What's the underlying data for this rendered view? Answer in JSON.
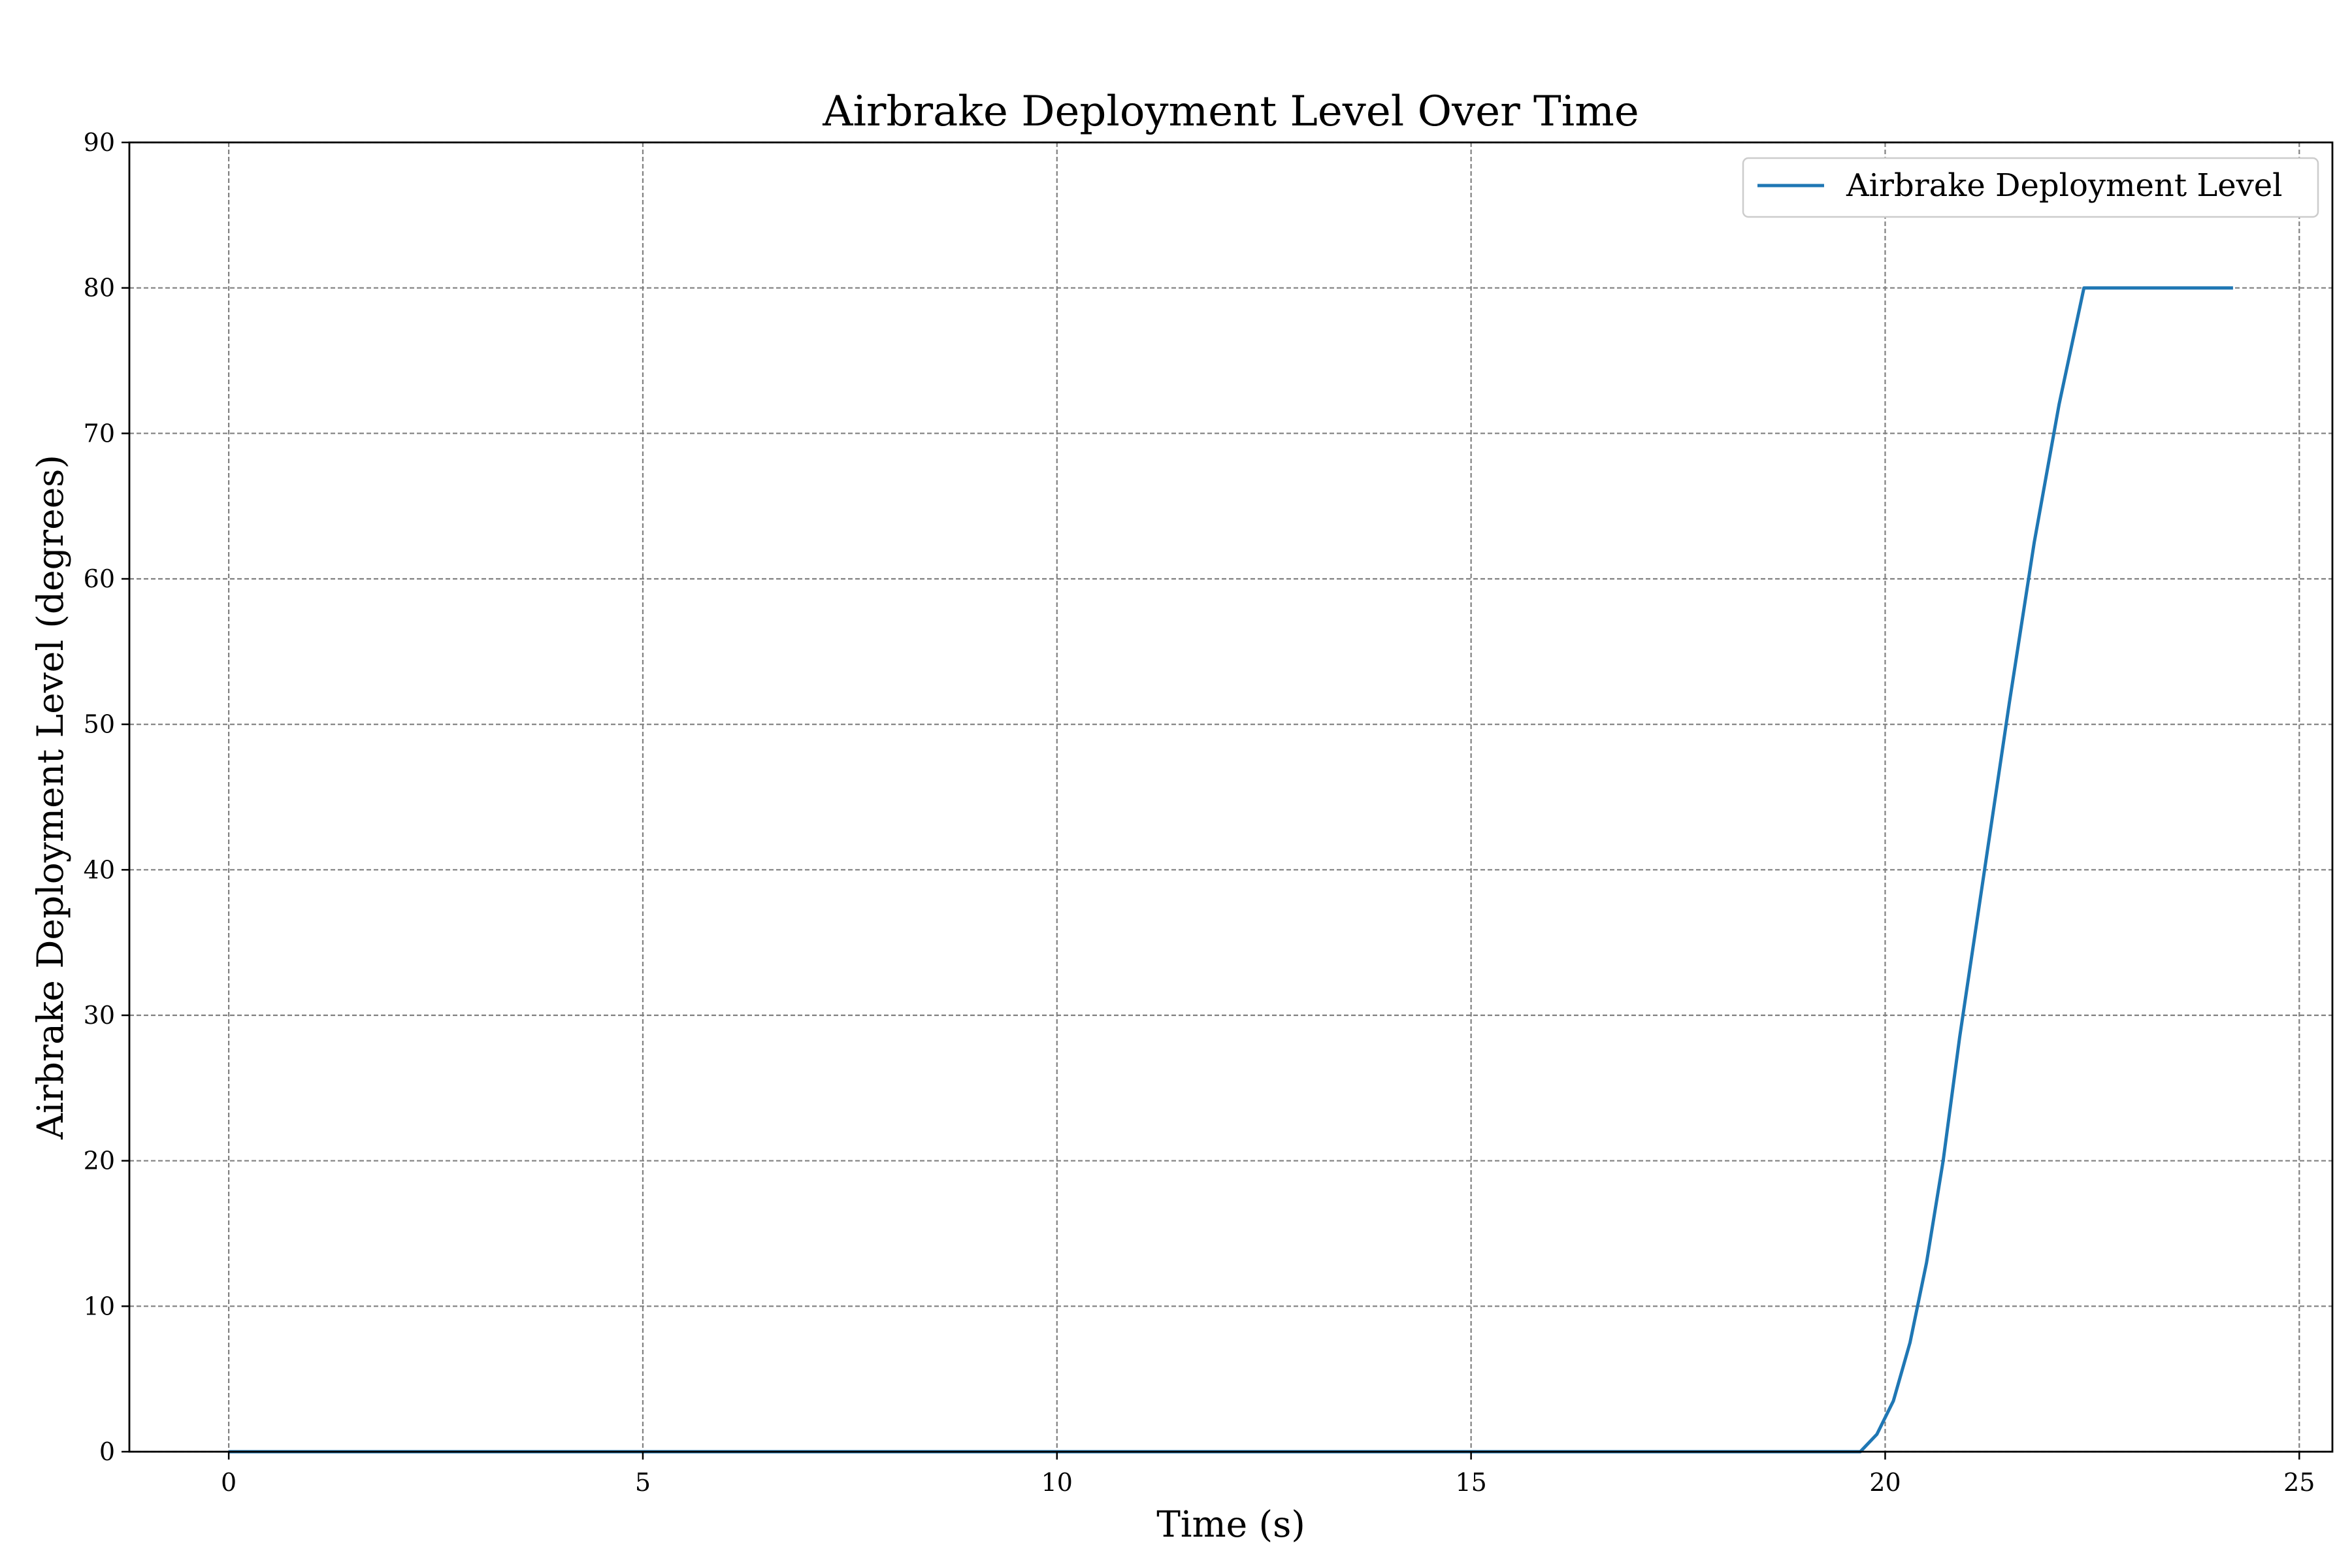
{
  "chart_data": {
    "type": "line",
    "title": "Airbrake Deployment Level Over Time",
    "xlabel": "Time (s)",
    "ylabel": "Airbrake Deployment Level (degrees)",
    "xlim": [
      -1.2,
      25.4
    ],
    "ylim": [
      0,
      90
    ],
    "xticks": [
      0,
      5,
      10,
      15,
      20,
      25
    ],
    "yticks": [
      0,
      10,
      20,
      30,
      40,
      50,
      60,
      70,
      80,
      90
    ],
    "grid": true,
    "legend_position": "top-right",
    "series": [
      {
        "name": "Airbrake Deployment Level",
        "color": "#1f77b4",
        "x": [
          0,
          5,
          10,
          15,
          19.7,
          19.9,
          20.1,
          20.3,
          20.5,
          20.7,
          20.9,
          21.2,
          21.5,
          21.8,
          22.1,
          22.4,
          23.0,
          23.6,
          24.2
        ],
        "y": [
          0,
          0,
          0,
          0,
          0,
          1.2,
          3.5,
          7.5,
          13,
          20,
          28.5,
          40,
          51.5,
          62.5,
          72,
          80,
          80,
          80,
          80
        ]
      }
    ]
  }
}
